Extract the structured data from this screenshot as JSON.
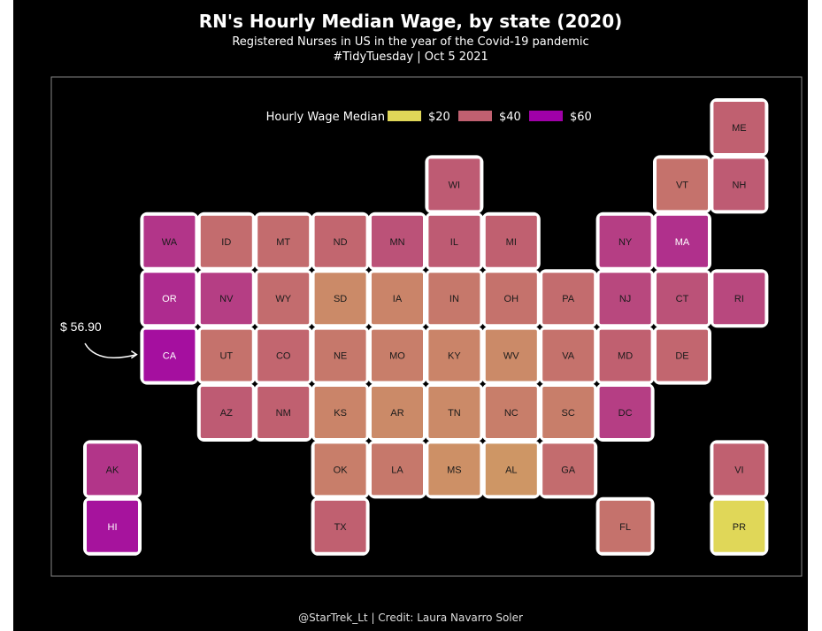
{
  "title": "RN's Hourly Median Wage, by state (2020)",
  "subtitle": "Registered Nurses in US in the year of the Covid-19 pandemic",
  "subtitle2": "#TidyTuesday | Oct 5 2021",
  "caption": "@StarTrek_Lt | Credit: Laura Navarro Soler",
  "annotation": "$ 56.90",
  "colors": {
    "background": "#000000",
    "low": "#e0d758",
    "mid": "#c06070",
    "high": "#a000a8",
    "tile_border": "#ffffff"
  },
  "chart_data": {
    "type": "heatmap",
    "legend": {
      "title": "Hourly Wage Median",
      "entries": [
        {
          "label": "$20",
          "value": 20
        },
        {
          "label": "$40",
          "value": 40
        },
        {
          "label": "$60",
          "value": 60
        }
      ]
    },
    "tiles": [
      {
        "state": "ME",
        "row": 0,
        "col": 11,
        "value": 40
      },
      {
        "state": "WI",
        "row": 1,
        "col": 6,
        "value": 41
      },
      {
        "state": "VT",
        "row": 1,
        "col": 10,
        "value": 37
      },
      {
        "state": "NH",
        "row": 1,
        "col": 11,
        "value": 41
      },
      {
        "state": "WA",
        "row": 2,
        "col": 1,
        "value": 49
      },
      {
        "state": "ID",
        "row": 2,
        "col": 2,
        "value": 38
      },
      {
        "state": "MT",
        "row": 2,
        "col": 3,
        "value": 38
      },
      {
        "state": "ND",
        "row": 2,
        "col": 4,
        "value": 39
      },
      {
        "state": "MN",
        "row": 2,
        "col": 5,
        "value": 43
      },
      {
        "state": "IL",
        "row": 2,
        "col": 6,
        "value": 41
      },
      {
        "state": "MI",
        "row": 2,
        "col": 7,
        "value": 40
      },
      {
        "state": "NY",
        "row": 2,
        "col": 9,
        "value": 47
      },
      {
        "state": "MA",
        "row": 2,
        "col": 10,
        "value": 50
      },
      {
        "state": "OR",
        "row": 3,
        "col": 1,
        "value": 51
      },
      {
        "state": "NV",
        "row": 3,
        "col": 2,
        "value": 47
      },
      {
        "state": "WY",
        "row": 3,
        "col": 3,
        "value": 38
      },
      {
        "state": "SD",
        "row": 3,
        "col": 4,
        "value": 33
      },
      {
        "state": "IA",
        "row": 3,
        "col": 5,
        "value": 34
      },
      {
        "state": "IN",
        "row": 3,
        "col": 6,
        "value": 36
      },
      {
        "state": "OH",
        "row": 3,
        "col": 7,
        "value": 37
      },
      {
        "state": "PA",
        "row": 3,
        "col": 8,
        "value": 38
      },
      {
        "state": "NJ",
        "row": 3,
        "col": 9,
        "value": 45
      },
      {
        "state": "CT",
        "row": 3,
        "col": 10,
        "value": 43
      },
      {
        "state": "RI",
        "row": 3,
        "col": 11,
        "value": 45
      },
      {
        "state": "CA",
        "row": 4,
        "col": 1,
        "value": 56.9
      },
      {
        "state": "UT",
        "row": 4,
        "col": 2,
        "value": 37
      },
      {
        "state": "CO",
        "row": 4,
        "col": 3,
        "value": 39
      },
      {
        "state": "NE",
        "row": 4,
        "col": 4,
        "value": 36
      },
      {
        "state": "MO",
        "row": 4,
        "col": 5,
        "value": 35
      },
      {
        "state": "KY",
        "row": 4,
        "col": 6,
        "value": 34
      },
      {
        "state": "WV",
        "row": 4,
        "col": 7,
        "value": 33
      },
      {
        "state": "VA",
        "row": 4,
        "col": 8,
        "value": 37
      },
      {
        "state": "MD",
        "row": 4,
        "col": 9,
        "value": 40
      },
      {
        "state": "DE",
        "row": 4,
        "col": 10,
        "value": 39
      },
      {
        "state": "AZ",
        "row": 5,
        "col": 2,
        "value": 41
      },
      {
        "state": "NM",
        "row": 5,
        "col": 3,
        "value": 40
      },
      {
        "state": "KS",
        "row": 5,
        "col": 4,
        "value": 34
      },
      {
        "state": "AR",
        "row": 5,
        "col": 5,
        "value": 33
      },
      {
        "state": "TN",
        "row": 5,
        "col": 6,
        "value": 33
      },
      {
        "state": "NC",
        "row": 5,
        "col": 7,
        "value": 35
      },
      {
        "state": "SC",
        "row": 5,
        "col": 8,
        "value": 35
      },
      {
        "state": "DC",
        "row": 5,
        "col": 9,
        "value": 47
      },
      {
        "state": "AK",
        "row": 6,
        "col": 0,
        "value": 49
      },
      {
        "state": "OK",
        "row": 6,
        "col": 4,
        "value": 35
      },
      {
        "state": "LA",
        "row": 6,
        "col": 5,
        "value": 36
      },
      {
        "state": "MS",
        "row": 6,
        "col": 6,
        "value": 32
      },
      {
        "state": "AL",
        "row": 6,
        "col": 7,
        "value": 31
      },
      {
        "state": "GA",
        "row": 6,
        "col": 8,
        "value": 38
      },
      {
        "state": "VI",
        "row": 6,
        "col": 11,
        "value": 40
      },
      {
        "state": "HI",
        "row": 7,
        "col": 0,
        "value": 56
      },
      {
        "state": "TX",
        "row": 7,
        "col": 4,
        "value": 40
      },
      {
        "state": "FL",
        "row": 7,
        "col": 9,
        "value": 37
      },
      {
        "state": "PR",
        "row": 7,
        "col": 11,
        "value": 18
      }
    ]
  }
}
